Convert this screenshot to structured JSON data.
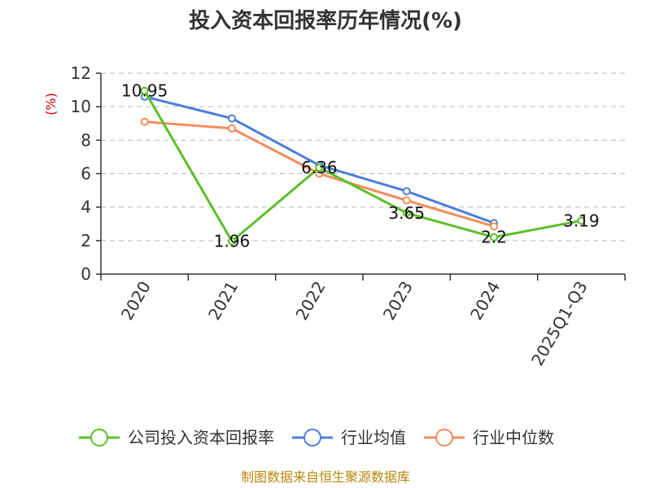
{
  "chart_data": {
    "type": "line",
    "title": "投入资本回报率历年情况(%)",
    "ylabel": "(%)",
    "xlabel": "",
    "categories": [
      "2020",
      "2021",
      "2022",
      "2023",
      "2024",
      "2025Q1-Q3"
    ],
    "ylim": [
      0,
      12
    ],
    "yticks": [
      0,
      2,
      4,
      6,
      8,
      10,
      12
    ],
    "grid": true,
    "legend_position": "bottom",
    "series": [
      {
        "name": "公司投入资本回报率",
        "color": "#5cbf2a",
        "values": [
          10.95,
          1.96,
          6.36,
          3.65,
          2.2,
          3.19
        ],
        "labels": [
          "10.95",
          "1.96",
          "6.36",
          "3.65",
          "2.2",
          "3.19"
        ]
      },
      {
        "name": "行业均值",
        "color": "#4a7fdc",
        "values": [
          10.6,
          9.3,
          6.5,
          4.95,
          3.05,
          null
        ]
      },
      {
        "name": "行业中位数",
        "color": "#f28c5a",
        "values": [
          9.1,
          8.7,
          6.0,
          4.4,
          2.85,
          null
        ]
      }
    ]
  },
  "source": "制图数据来自恒生聚源数据库"
}
